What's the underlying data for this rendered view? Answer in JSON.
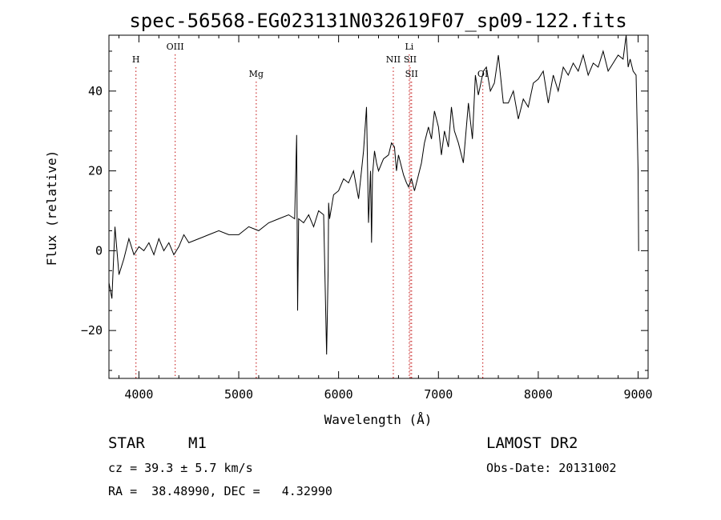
{
  "chart_data": {
    "type": "line",
    "title": "spec-56568-EG023131N032619F07_sp09-122.fits",
    "xlabel": "Wavelength (Å)",
    "ylabel": "Flux (relative)",
    "xlim": [
      3700,
      9100
    ],
    "ylim": [
      -32,
      54
    ],
    "x_ticks": [
      4000,
      5000,
      6000,
      7000,
      8000,
      9000
    ],
    "y_ticks": [
      -20,
      0,
      20,
      40
    ],
    "x_tick_labels": [
      "4000",
      "5000",
      "6000",
      "7000",
      "8000",
      "9000"
    ],
    "y_tick_labels": [
      "−20",
      "0",
      "20",
      "40"
    ],
    "grid": false,
    "line_color": "#000000",
    "marker_color": "#cc3333",
    "series": [
      {
        "x": [
          3700,
          3730,
          3760,
          3800,
          3850,
          3900,
          3950,
          4000,
          4050,
          4100,
          4150,
          4200,
          4250,
          4300,
          4350,
          4400,
          4450,
          4500,
          4600,
          4700,
          4800,
          4900,
          5000,
          5100,
          5200,
          5300,
          5400,
          5500,
          5560,
          5580,
          5590,
          5600,
          5650,
          5700,
          5750,
          5800,
          5850,
          5880,
          5895,
          5900,
          5910,
          5950,
          6000,
          6050,
          6100,
          6150,
          6200,
          6250,
          6280,
          6300,
          6320,
          6330,
          6340,
          6360,
          6380,
          6400,
          6450,
          6500,
          6530,
          6560,
          6580,
          6600,
          6620,
          6650,
          6680,
          6700,
          6730,
          6760,
          6800,
          6830,
          6860,
          6900,
          6930,
          6960,
          7000,
          7030,
          7060,
          7100,
          7130,
          7160,
          7200,
          7250,
          7300,
          7340,
          7370,
          7400,
          7450,
          7480,
          7520,
          7560,
          7600,
          7650,
          7700,
          7750,
          7800,
          7850,
          7900,
          7950,
          8000,
          8050,
          8100,
          8150,
          8200,
          8250,
          8300,
          8350,
          8400,
          8450,
          8500,
          8550,
          8600,
          8650,
          8700,
          8750,
          8800,
          8850,
          8880,
          8900,
          8920,
          8950,
          8980,
          9000,
          9005,
          9010
        ],
        "y": [
          -8,
          -12,
          6,
          -6,
          -2,
          3,
          -1,
          1,
          0,
          2,
          -1,
          3,
          0,
          2,
          -1,
          1,
          4,
          2,
          3,
          4,
          5,
          4,
          4,
          6,
          5,
          7,
          8,
          9,
          8,
          29,
          -15,
          8,
          7,
          9,
          6,
          10,
          9,
          -26,
          -5,
          12,
          8,
          14,
          15,
          18,
          17,
          20,
          13,
          25,
          36,
          7,
          20,
          2,
          19,
          25,
          22,
          20,
          23,
          24,
          27,
          26,
          20,
          24,
          22,
          19,
          17,
          16,
          18,
          15,
          19,
          22,
          27,
          31,
          28,
          35,
          31,
          24,
          30,
          26,
          36,
          30,
          27,
          22,
          37,
          28,
          44,
          39,
          45,
          46,
          40,
          42,
          49,
          37,
          37,
          40,
          33,
          38,
          36,
          42,
          43,
          45,
          37,
          44,
          40,
          46,
          44,
          47,
          45,
          49,
          44,
          47,
          46,
          50,
          45,
          47,
          49,
          48,
          54,
          46,
          48,
          45,
          44,
          20,
          0,
          0
        ]
      }
    ],
    "line_markers": [
      {
        "label": "H",
        "x": 3970,
        "label_level": 1
      },
      {
        "label": "OIII",
        "x": 4363,
        "label_level": 0
      },
      {
        "label": "Mg",
        "x": 5175,
        "label_level": 2
      },
      {
        "label": "NII",
        "x": 6548,
        "label_level": 1
      },
      {
        "label": "Li",
        "x": 6708,
        "label_level": 0
      },
      {
        "label": "SII",
        "x": 6717,
        "label_level": 1
      },
      {
        "label": "SII",
        "x": 6731,
        "label_level": 2
      },
      {
        "label": "OI",
        "x": 7444,
        "label_level": 2
      }
    ]
  },
  "info": {
    "class_label": "STAR",
    "subclass_label": "M1",
    "survey_label": "LAMOST DR2",
    "cz_text": "cz = 39.3 ± 5.7 km/s",
    "obs_date_text": "Obs-Date: 20131002",
    "coords_text": "RA =  38.48990, DEC =   4.32990"
  }
}
